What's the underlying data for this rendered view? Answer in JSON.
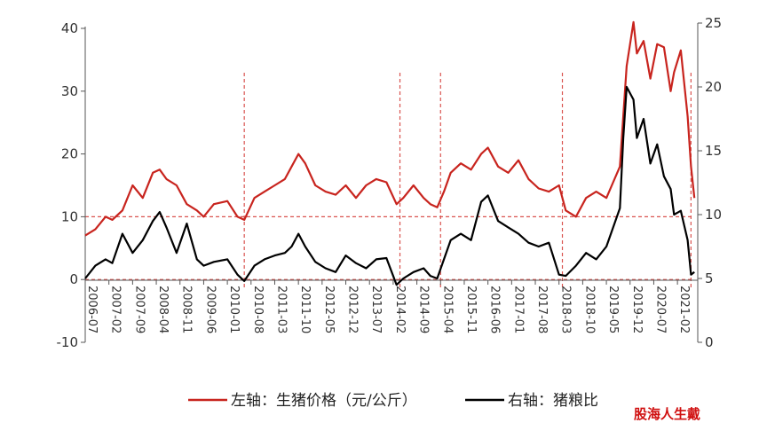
{
  "chart_data": {
    "type": "line",
    "title": "",
    "x_tick_labels": [
      "2006-07",
      "2007-02",
      "2007-09",
      "2008-04",
      "2008-11",
      "2009-06",
      "2010-01",
      "2010-08",
      "2011-03",
      "2011-10",
      "2012-05",
      "2012-12",
      "2013-07",
      "2014-02",
      "2014-09",
      "2015-04",
      "2015-11",
      "2016-06",
      "2017-01",
      "2017-08",
      "2018-03",
      "2018-10",
      "2019-05",
      "2019-12",
      "2020-07",
      "2021-02"
    ],
    "left_axis": {
      "ylim": [
        -10,
        40
      ],
      "ticks": [
        "-10",
        "0",
        "10",
        "20",
        "30",
        "40"
      ]
    },
    "right_axis": {
      "ylim": [
        0,
        25
      ],
      "ticks": [
        "0",
        "5",
        "10",
        "15",
        "20",
        "25"
      ]
    },
    "reference_lines_left": [
      10,
      0
    ],
    "vertical_marker_dates": [
      "2010-06",
      "2014-04",
      "2015-04",
      "2018-04",
      "2021-06"
    ],
    "series": [
      {
        "name": "左轴：生猪价格（元/公斤）",
        "axis": "left",
        "color": "#c8241e",
        "x": [
          "2006-07",
          "2006-10",
          "2007-01",
          "2007-03",
          "2007-06",
          "2007-09",
          "2007-12",
          "2008-03",
          "2008-05",
          "2008-07",
          "2008-10",
          "2009-01",
          "2009-04",
          "2009-06",
          "2009-09",
          "2010-01",
          "2010-04",
          "2010-06",
          "2010-09",
          "2010-12",
          "2011-03",
          "2011-06",
          "2011-08",
          "2011-10",
          "2011-12",
          "2012-03",
          "2012-06",
          "2012-09",
          "2012-12",
          "2013-03",
          "2013-06",
          "2013-09",
          "2013-12",
          "2014-03",
          "2014-05",
          "2014-08",
          "2014-11",
          "2015-01",
          "2015-03",
          "2015-05",
          "2015-07",
          "2015-10",
          "2016-01",
          "2016-04",
          "2016-06",
          "2016-09",
          "2016-12",
          "2017-03",
          "2017-06",
          "2017-09",
          "2017-12",
          "2018-03",
          "2018-05",
          "2018-08",
          "2018-11",
          "2019-02",
          "2019-05",
          "2019-07",
          "2019-09",
          "2019-10",
          "2019-11",
          "2020-01",
          "2020-02",
          "2020-04",
          "2020-06",
          "2020-08",
          "2020-10",
          "2020-12",
          "2021-01",
          "2021-03",
          "2021-05",
          "2021-06",
          "2021-07"
        ],
        "values": [
          7,
          8,
          10,
          9.5,
          11,
          15,
          13,
          17,
          17.5,
          16,
          15,
          12,
          11,
          10,
          12,
          12.5,
          10,
          9.5,
          13,
          14,
          15,
          16,
          18,
          20,
          18.5,
          15,
          14,
          13.5,
          15,
          13,
          15,
          16,
          15.5,
          12,
          13,
          15,
          13,
          12,
          11.5,
          14,
          17,
          18.5,
          17.5,
          20,
          21,
          18,
          17,
          19,
          16,
          14.5,
          14,
          15,
          11,
          10,
          13,
          14,
          13,
          15.5,
          18,
          26,
          34,
          41,
          36,
          38,
          32,
          37.5,
          37,
          30,
          33,
          36.5,
          26,
          18,
          13
        ]
      },
      {
        "name": "右轴：猪粮比",
        "axis": "right",
        "color": "#000000",
        "x": [
          "2006-07",
          "2006-10",
          "2007-01",
          "2007-03",
          "2007-06",
          "2007-09",
          "2007-12",
          "2008-03",
          "2008-05",
          "2008-07",
          "2008-10",
          "2009-01",
          "2009-04",
          "2009-06",
          "2009-09",
          "2010-01",
          "2010-04",
          "2010-06",
          "2010-09",
          "2010-12",
          "2011-03",
          "2011-06",
          "2011-08",
          "2011-10",
          "2011-12",
          "2012-03",
          "2012-06",
          "2012-09",
          "2012-12",
          "2013-03",
          "2013-06",
          "2013-09",
          "2013-12",
          "2014-03",
          "2014-05",
          "2014-08",
          "2014-11",
          "2015-01",
          "2015-03",
          "2015-05",
          "2015-07",
          "2015-10",
          "2016-01",
          "2016-04",
          "2016-06",
          "2016-09",
          "2016-12",
          "2017-03",
          "2017-06",
          "2017-09",
          "2017-12",
          "2018-03",
          "2018-05",
          "2018-08",
          "2018-11",
          "2019-02",
          "2019-05",
          "2019-07",
          "2019-09",
          "2019-10",
          "2019-11",
          "2020-01",
          "2020-02",
          "2020-04",
          "2020-06",
          "2020-08",
          "2020-10",
          "2020-12",
          "2021-01",
          "2021-03",
          "2021-05",
          "2021-06",
          "2021-07"
        ],
        "values": [
          5,
          6,
          6.5,
          6.2,
          8.5,
          7,
          8,
          9.5,
          10.2,
          9,
          7,
          9.3,
          6.5,
          6,
          6.3,
          6.5,
          5.3,
          4.8,
          6,
          6.5,
          6.8,
          7,
          7.5,
          8.5,
          7.5,
          6.3,
          5.8,
          5.5,
          6.8,
          6.2,
          5.8,
          6.5,
          6.6,
          4.5,
          5,
          5.5,
          5.8,
          5.2,
          5,
          6.5,
          8,
          8.5,
          8,
          11,
          11.5,
          9.5,
          9,
          8.5,
          7.8,
          7.5,
          7.8,
          5.3,
          5.2,
          6,
          7,
          6.5,
          7.5,
          9,
          10.5,
          16,
          20,
          19,
          16,
          17.5,
          14,
          15.5,
          13,
          12,
          10,
          10.3,
          8,
          5.3,
          5.5
        ]
      }
    ]
  },
  "legend": {
    "price_label": "左轴：生猪价格（元/公斤）",
    "ratio_label": "右轴：猪粮比"
  },
  "watermark": "股海人生戴"
}
